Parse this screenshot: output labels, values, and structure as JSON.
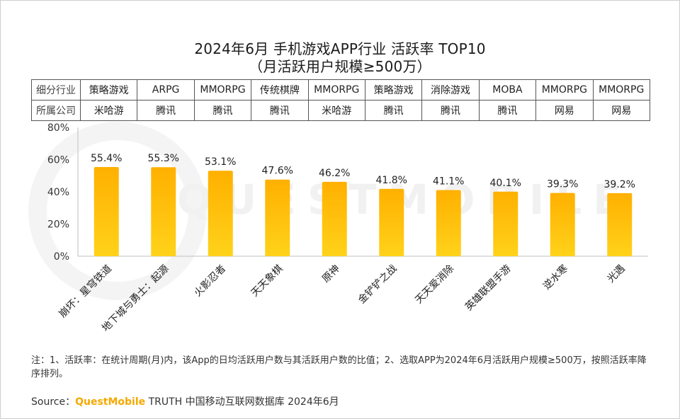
{
  "title": {
    "line1": "2024年6月 手机游戏APP行业 活跃率 TOP10",
    "line2": "（月活跃用户规模≥500万）"
  },
  "watermark": "QUESTMOBILE",
  "table": {
    "row_headers": [
      "细分行业",
      "所属公司"
    ],
    "industries": [
      "策略游戏",
      "ARPG",
      "MMORPG",
      "传统棋牌",
      "MMORPG",
      "策略游戏",
      "消除游戏",
      "MOBA",
      "MMORPG",
      "MMORPG"
    ],
    "companies": [
      "米哈游",
      "腾讯",
      "腾讯",
      "腾讯",
      "米哈游",
      "腾讯",
      "腾讯",
      "腾讯",
      "网易",
      "网易"
    ]
  },
  "chart_data": {
    "type": "bar",
    "categories": [
      "崩坏：星穹铁道",
      "地下城与勇士：起源",
      "火影忍者",
      "天天象棋",
      "原神",
      "金铲铲之战",
      "天天爱消除",
      "英雄联盟手游",
      "逆水寒",
      "光遇"
    ],
    "values": [
      55.4,
      55.3,
      53.1,
      47.6,
      46.2,
      41.8,
      41.1,
      40.1,
      39.3,
      39.2
    ],
    "value_labels": [
      "55.4%",
      "55.3%",
      "53.1%",
      "47.6%",
      "46.2%",
      "41.8%",
      "41.1%",
      "40.1%",
      "39.3%",
      "39.2%"
    ],
    "y_ticks": [
      "0%",
      "20%",
      "40%",
      "60%",
      "80%"
    ],
    "ylim": [
      0,
      80
    ],
    "colors": {
      "bar_top": "#ffb000",
      "bar_bottom": "#ffd21a",
      "axis": "#bfbfbf"
    }
  },
  "note": "注：1、活跃率：在统计周期(月)内，该App的日均活跃用户数与其活跃用户数的比值；2、选取APP为2024年6月活跃用户规模≥500万，按照活跃率降序排列。",
  "source": {
    "prefix": "Source：",
    "brand": "QuestMobile",
    "rest": " TRUTH 中国移动互联网数据库 2024年6月"
  }
}
